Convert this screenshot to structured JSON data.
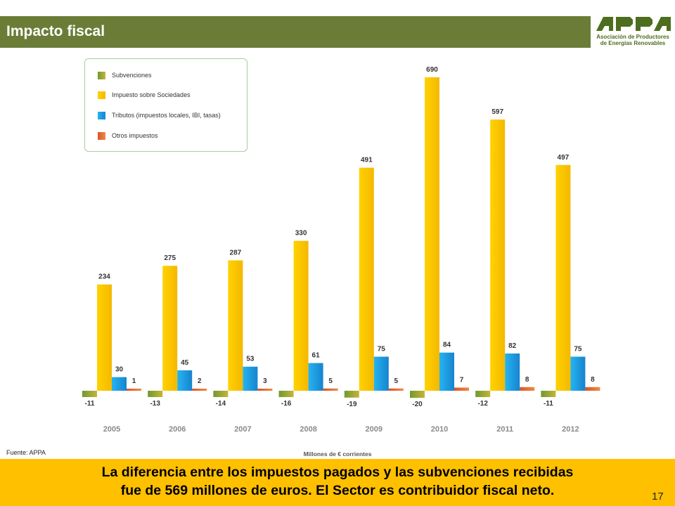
{
  "slide": {
    "title": "Impacto fiscal",
    "source": "Fuente: APPA",
    "page_number": "17",
    "conclusion_line1": "La diferencia entre los impuestos pagados y las subvenciones recibidas",
    "conclusion_line2": "fue de 569 millones de euros. El Sector es contribuidor fiscal neto."
  },
  "logo": {
    "wordmark": "APPA",
    "line1": "Asociación de Productores",
    "line2": "de Energías Renovables"
  },
  "colors": {
    "title_bar": "#6b7c36",
    "footer_band": "#ffc000",
    "subvenciones": "#7ea336",
    "impuesto_sociedades": "#ffcc00",
    "tributos": "#1fa3e6",
    "otros": "#e06a2c",
    "logo_green": "#4d6d1f"
  },
  "chart_data": {
    "type": "bar",
    "categories": [
      "2005",
      "2006",
      "2007",
      "2008",
      "2009",
      "2010",
      "2011",
      "2012"
    ],
    "series": [
      {
        "name": "Subvenciones",
        "values": [
          -11,
          -13,
          -14,
          -16,
          -19,
          -20,
          -12,
          -11
        ]
      },
      {
        "name": "Impuesto sobre Sociedades",
        "values": [
          234,
          275,
          287,
          330,
          491,
          690,
          597,
          497
        ]
      },
      {
        "name": "Tributos (impuestos locales, IBI, tasas)",
        "values": [
          30,
          45,
          53,
          61,
          75,
          84,
          82,
          75
        ]
      },
      {
        "name": "Otros impuestos",
        "values": [
          1,
          2,
          3,
          5,
          5,
          7,
          8,
          8
        ]
      }
    ],
    "xlabel": "Millones de € corrientes",
    "ylabel": "",
    "ylim": [
      -20,
      700
    ],
    "grid": false,
    "legend_position": "top-left"
  }
}
